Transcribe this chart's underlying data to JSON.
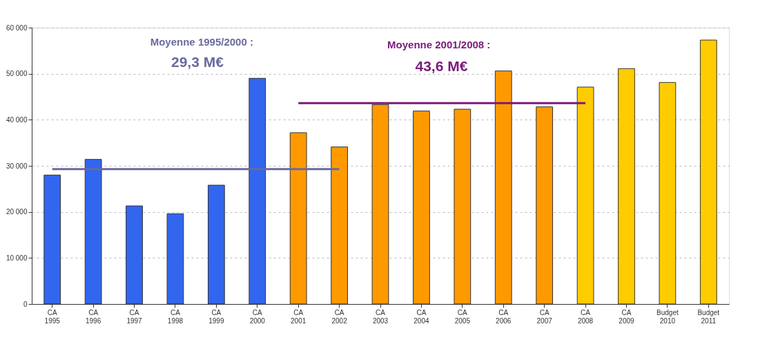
{
  "chart_data": {
    "type": "bar",
    "categories": [
      "CA 1995",
      "CA 1996",
      "CA 1997",
      "CA 1998",
      "CA 1999",
      "CA 2000",
      "CA 2001",
      "CA 2002",
      "CA 2003",
      "CA 2004",
      "CA 2005",
      "CA 2006",
      "CA 2007",
      "CA 2008",
      "CA 2009",
      "Budget 2010",
      "Budget 2011"
    ],
    "series": [
      {
        "values": [
          28000,
          31400,
          21300,
          19600,
          25800,
          49000,
          37200,
          34100,
          43300,
          41900,
          42300,
          50600,
          42800,
          47100,
          51100,
          48100,
          57300
        ],
        "colors": [
          "#3366ee",
          "#3366ee",
          "#3366ee",
          "#3366ee",
          "#3366ee",
          "#3366ee",
          "#ff9900",
          "#ff9900",
          "#ff9900",
          "#ff9900",
          "#ff9900",
          "#ff9900",
          "#ff9900",
          "#ffcc00",
          "#ffcc00",
          "#ffcc00",
          "#ffcc00"
        ]
      },
      {
        "type": "line",
        "color": "#6a6a9e",
        "values": [
          29300,
          29300,
          29300,
          29300,
          29300,
          29300,
          29300,
          29300,
          null,
          null,
          null,
          null,
          null,
          null,
          null,
          null,
          null
        ]
      },
      {
        "type": "line",
        "color": "#7a1a7a",
        "values": [
          null,
          null,
          null,
          null,
          null,
          null,
          43600,
          43600,
          43600,
          43600,
          43600,
          43600,
          43600,
          43600,
          null,
          null,
          null
        ]
      }
    ],
    "ylim": [
      0,
      60000
    ],
    "yticks": [
      {
        "value": 0,
        "label": "0"
      },
      {
        "value": 10000,
        "label": "10 000"
      },
      {
        "value": 20000,
        "label": "20 000"
      },
      {
        "value": 30000,
        "label": "30 000"
      },
      {
        "value": 40000,
        "label": "40 000"
      },
      {
        "value": 50000,
        "label": "50 000"
      },
      {
        "value": 60000,
        "label": "60 000"
      }
    ],
    "grid": "y",
    "annotations": [
      {
        "text": "Moyenne 1995/2000 :"
      },
      {
        "text": "29,3 M€"
      },
      {
        "text": "Moyenne 2001/2008 :"
      },
      {
        "text": "43,6 M€"
      }
    ]
  }
}
